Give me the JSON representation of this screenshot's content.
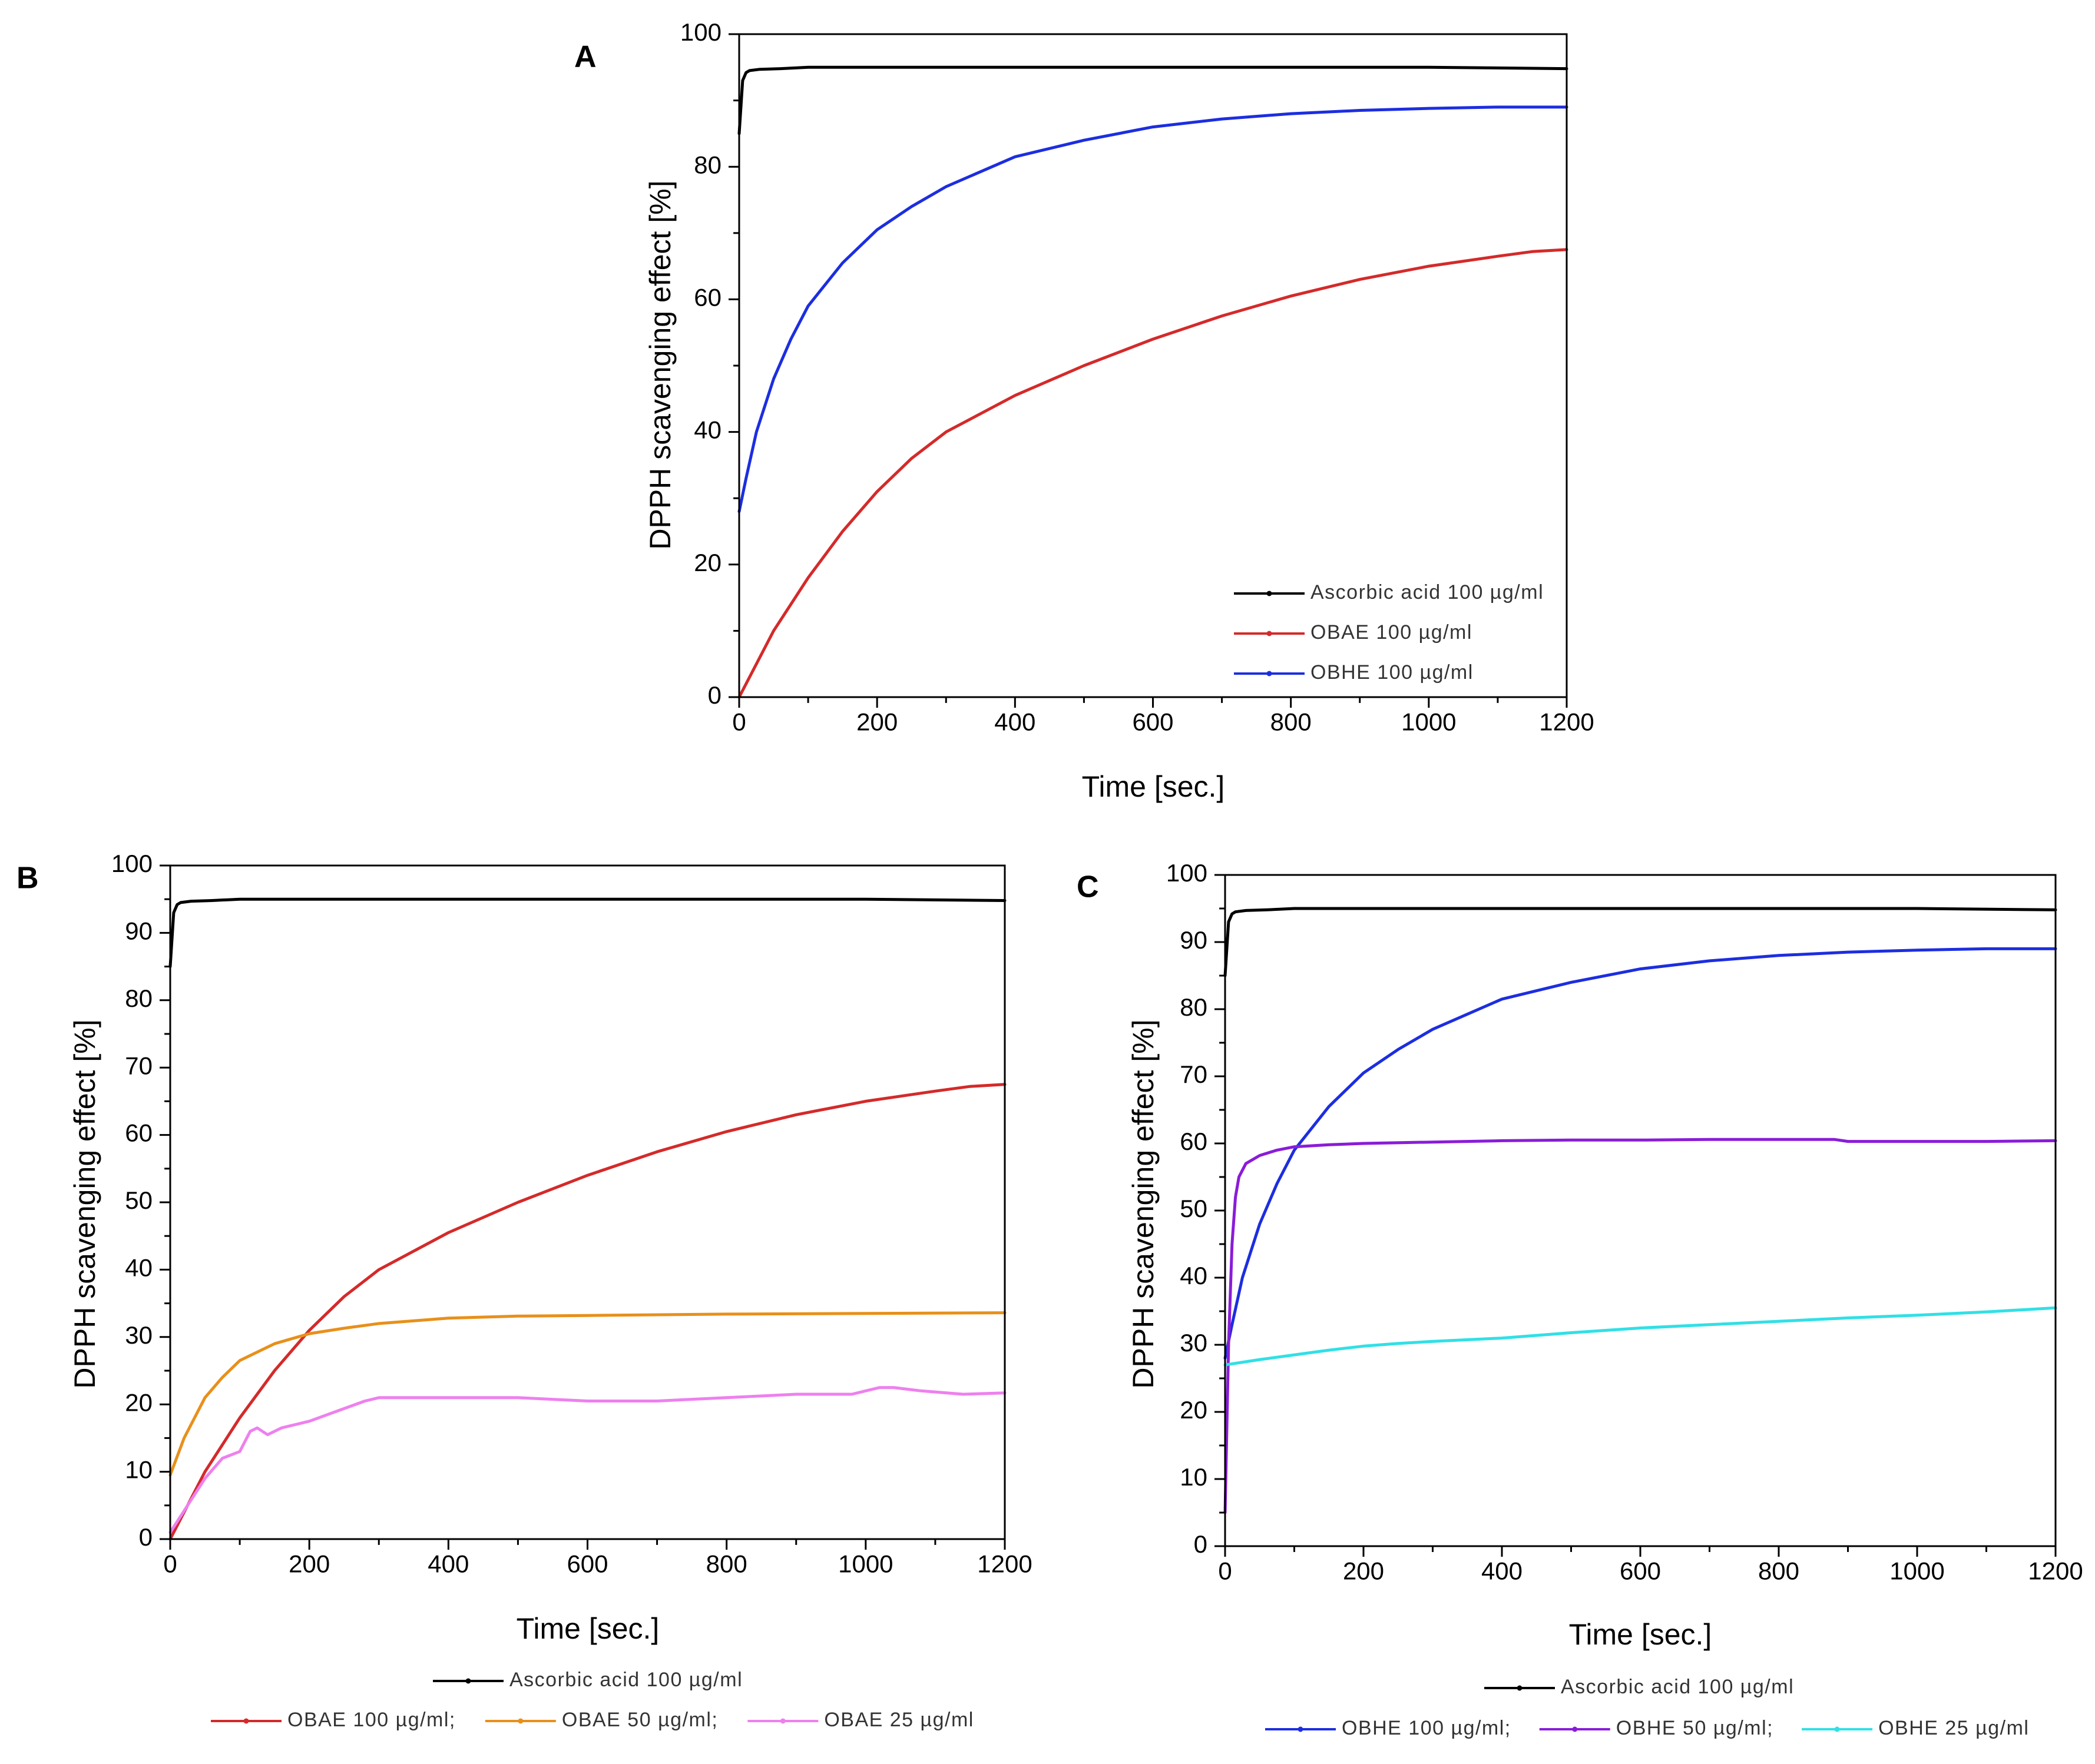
{
  "figure": {
    "panels": [
      "A",
      "B",
      "C"
    ]
  },
  "colors": {
    "ascorbic": "#000000",
    "obae100": "#d42a2a",
    "obae50": "#e8901a",
    "obae25": "#ee80ee",
    "obhe100": "#1c2ee0",
    "obhe50": "#8a1cd8",
    "obhe25": "#30e0e6"
  },
  "chart_data": [
    {
      "type": "line",
      "panel_label": "A",
      "xlabel": "Time [sec.]",
      "ylabel": "DPPH scavenging effect [%]",
      "xlim": [
        0,
        1200
      ],
      "ylim": [
        0,
        100
      ],
      "x_ticks": [
        0,
        200,
        400,
        600,
        800,
        1000,
        1200
      ],
      "y_ticks": [
        0,
        20,
        40,
        60,
        80,
        100
      ],
      "legend": "inside-bottom-right",
      "series": [
        {
          "name": "Ascorbic acid 100 µg/ml",
          "color": "#000000",
          "x": [
            0,
            5,
            10,
            15,
            30,
            60,
            100,
            200,
            400,
            600,
            800,
            1000,
            1200
          ],
          "y": [
            85,
            93,
            94.2,
            94.5,
            94.7,
            94.8,
            95,
            95,
            95,
            95,
            95,
            95,
            94.8
          ]
        },
        {
          "name": "OBAE 100 µg/ml",
          "color": "#d42a2a",
          "x": [
            0,
            50,
            100,
            150,
            200,
            250,
            300,
            400,
            500,
            600,
            700,
            800,
            900,
            1000,
            1100,
            1150,
            1200
          ],
          "y": [
            0,
            10,
            18,
            25,
            31,
            36,
            40,
            45.5,
            50,
            54,
            57.5,
            60.5,
            63,
            65,
            66.5,
            67.2,
            67.5
          ]
        },
        {
          "name": "OBHE 100 µg/ml",
          "color": "#1c2ee0",
          "x": [
            0,
            10,
            25,
            50,
            75,
            100,
            150,
            200,
            250,
            300,
            400,
            500,
            600,
            700,
            800,
            900,
            1000,
            1100,
            1200
          ],
          "y": [
            28,
            33,
            40,
            48,
            54,
            59,
            65.5,
            70.5,
            74,
            77,
            81.5,
            84,
            86,
            87.2,
            88,
            88.5,
            88.8,
            89,
            89
          ]
        }
      ]
    },
    {
      "type": "line",
      "panel_label": "B",
      "xlabel": "Time [sec.]",
      "ylabel": "DPPH scavenging effect [%]",
      "xlim": [
        0,
        1200
      ],
      "ylim": [
        0,
        100
      ],
      "x_ticks": [
        0,
        200,
        400,
        600,
        800,
        1000,
        1200
      ],
      "y_ticks": [
        0,
        10,
        20,
        30,
        40,
        50,
        60,
        70,
        80,
        90,
        100
      ],
      "legend": "below",
      "series": [
        {
          "name": "Ascorbic acid 100 µg/ml",
          "color": "#000000",
          "x": [
            0,
            5,
            10,
            15,
            30,
            60,
            100,
            200,
            400,
            600,
            800,
            1000,
            1200
          ],
          "y": [
            85,
            93,
            94.2,
            94.5,
            94.7,
            94.8,
            95,
            95,
            95,
            95,
            95,
            95,
            94.8
          ]
        },
        {
          "name": "OBAE 100 µg/ml",
          "color": "#d42a2a",
          "x": [
            0,
            50,
            100,
            150,
            200,
            250,
            300,
            400,
            500,
            600,
            700,
            800,
            900,
            1000,
            1100,
            1150,
            1200
          ],
          "y": [
            0,
            10,
            18,
            25,
            31,
            36,
            40,
            45.5,
            50,
            54,
            57.5,
            60.5,
            63,
            65,
            66.5,
            67.2,
            67.5
          ]
        },
        {
          "name": "OBAE 50 µg/ml",
          "color": "#e8901a",
          "x": [
            0,
            20,
            50,
            75,
            100,
            150,
            200,
            250,
            300,
            400,
            500,
            600,
            800,
            1000,
            1200
          ],
          "y": [
            9.5,
            15,
            21,
            24,
            26.5,
            29,
            30.5,
            31.3,
            32,
            32.8,
            33.1,
            33.2,
            33.4,
            33.5,
            33.6
          ]
        },
        {
          "name": "OBAE 25 µg/ml",
          "color": "#ee80ee",
          "x": [
            0,
            25,
            50,
            75,
            100,
            115,
            125,
            140,
            160,
            200,
            240,
            280,
            300,
            400,
            500,
            600,
            700,
            800,
            900,
            980,
            1020,
            1040,
            1080,
            1140,
            1200
          ],
          "y": [
            1,
            5,
            9,
            12,
            13,
            16,
            16.5,
            15.5,
            16.5,
            17.5,
            19,
            20.5,
            21,
            21,
            21,
            20.5,
            20.5,
            21,
            21.5,
            21.5,
            22.5,
            22.5,
            22,
            21.5,
            21.7
          ]
        }
      ]
    },
    {
      "type": "line",
      "panel_label": "C",
      "xlabel": "Time [sec.]",
      "ylabel": "DPPH scavenging effect [%]",
      "xlim": [
        0,
        1200
      ],
      "ylim": [
        0,
        100
      ],
      "x_ticks": [
        0,
        200,
        400,
        600,
        800,
        1000,
        1200
      ],
      "y_ticks": [
        0,
        10,
        20,
        30,
        40,
        50,
        60,
        70,
        80,
        90,
        100
      ],
      "legend": "below",
      "series": [
        {
          "name": "Ascorbic acid 100 µg/ml",
          "color": "#000000",
          "x": [
            0,
            5,
            10,
            15,
            30,
            60,
            100,
            200,
            400,
            600,
            800,
            1000,
            1200
          ],
          "y": [
            85,
            93,
            94.2,
            94.5,
            94.7,
            94.8,
            95,
            95,
            95,
            95,
            95,
            95,
            94.8
          ]
        },
        {
          "name": "OBHE 100 µg/ml",
          "color": "#1c2ee0",
          "x": [
            0,
            10,
            25,
            50,
            75,
            100,
            150,
            200,
            250,
            300,
            400,
            500,
            600,
            700,
            800,
            900,
            1000,
            1100,
            1200
          ],
          "y": [
            28,
            33,
            40,
            48,
            54,
            59,
            65.5,
            70.5,
            74,
            77,
            81.5,
            84,
            86,
            87.2,
            88,
            88.5,
            88.8,
            89,
            89
          ]
        },
        {
          "name": "OBHE 50 µg/ml",
          "color": "#8a1cd8",
          "x": [
            0,
            5,
            10,
            15,
            20,
            30,
            50,
            75,
            100,
            150,
            200,
            300,
            400,
            500,
            600,
            700,
            800,
            880,
            900,
            1000,
            1100,
            1200
          ],
          "y": [
            5,
            30,
            45,
            52,
            55,
            57,
            58.2,
            59,
            59.5,
            59.8,
            60,
            60.2,
            60.4,
            60.5,
            60.5,
            60.6,
            60.6,
            60.6,
            60.3,
            60.3,
            60.3,
            60.4
          ]
        },
        {
          "name": "OBHE 25 µg/ml",
          "color": "#30e0e6",
          "x": [
            0,
            50,
            100,
            150,
            200,
            250,
            300,
            400,
            500,
            600,
            700,
            800,
            900,
            1000,
            1100,
            1200
          ],
          "y": [
            27,
            27.8,
            28.5,
            29.2,
            29.8,
            30.2,
            30.5,
            31,
            31.8,
            32.5,
            33,
            33.5,
            34,
            34.4,
            34.9,
            35.5
          ]
        }
      ]
    }
  ],
  "legends": {
    "A": {
      "items": [
        "Ascorbic acid 100 µg/ml",
        "OBAE 100 µg/ml",
        "OBHE 100 µg/ml"
      ]
    },
    "B": {
      "row1": [
        "Ascorbic acid 100 µg/ml"
      ],
      "row2": [
        "OBAE 100 µg/ml;",
        "OBAE 50 µg/ml;",
        "OBAE 25 µg/ml"
      ]
    },
    "C": {
      "row1": [
        "Ascorbic acid 100 µg/ml"
      ],
      "row2": [
        "OBHE 100 µg/ml;",
        "OBHE 50 µg/ml;",
        "OBHE 25 µg/ml"
      ]
    }
  }
}
